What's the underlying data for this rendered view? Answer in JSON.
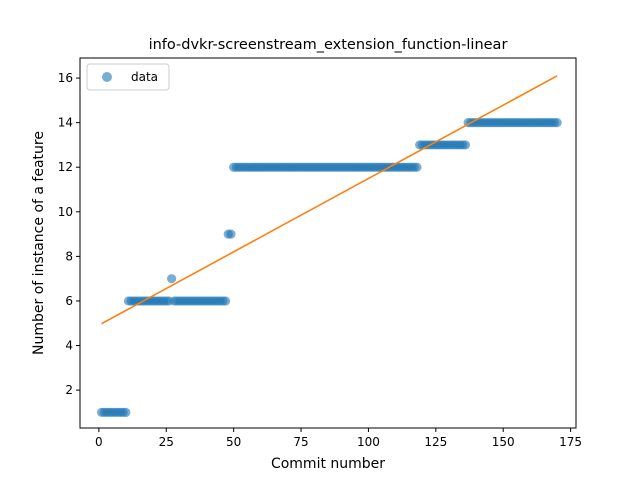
{
  "chart_data": {
    "type": "scatter",
    "title": "info-dvkr-screenstream_extension_function-linear",
    "xlabel": "Commit number",
    "ylabel": "Number of instance of a feature",
    "xlim": [
      -7,
      177
    ],
    "ylim": [
      0.3,
      16.9
    ],
    "xticks": [
      0,
      25,
      50,
      75,
      100,
      125,
      150,
      175
    ],
    "yticks": [
      2,
      4,
      6,
      8,
      10,
      12,
      14,
      16
    ],
    "grid": false,
    "legend": {
      "position": "top-left",
      "entries": [
        "data"
      ]
    },
    "colors": {
      "points": "#1f77b4",
      "line": "#ff7f0e"
    },
    "segments": [
      {
        "x_start": 1,
        "x_end": 10,
        "y": 1
      },
      {
        "x_start": 11,
        "x_end": 26,
        "y": 6
      },
      {
        "x_start": 27,
        "x_end": 27,
        "y": 7
      },
      {
        "x_start": 28,
        "x_end": 47,
        "y": 6
      },
      {
        "x_start": 48,
        "x_end": 49,
        "y": 9
      },
      {
        "x_start": 50,
        "x_end": 118,
        "y": 12
      },
      {
        "x_start": 119,
        "x_end": 136,
        "y": 13
      },
      {
        "x_start": 137,
        "x_end": 170,
        "y": 14
      }
    ],
    "series": [
      {
        "name": "data",
        "kind": "points"
      },
      {
        "kind": "line",
        "x": [
          1,
          170
        ],
        "y": [
          4.98,
          16.1
        ]
      }
    ]
  }
}
